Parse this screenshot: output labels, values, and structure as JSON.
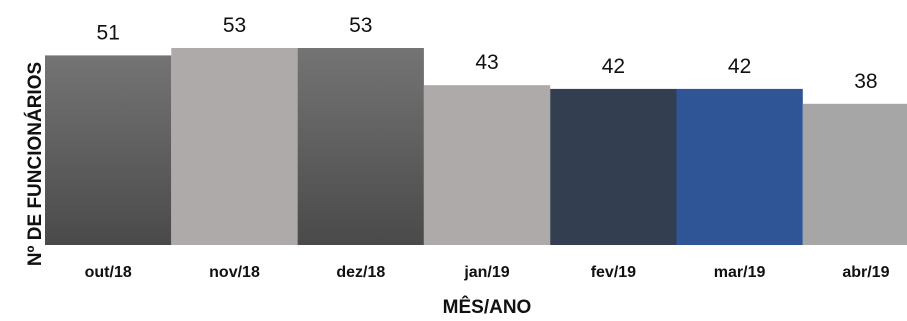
{
  "chart_data": {
    "type": "bar",
    "title": "",
    "xlabel": "MÊS/ANO",
    "ylabel": "Nº DE FUNCIONÁRIOS",
    "categories": [
      "out/18",
      "nov/18",
      "dez/18",
      "jan/19",
      "fev/19",
      "mar/19",
      "abr/19"
    ],
    "values": [
      51,
      53,
      53,
      43,
      42,
      42,
      38
    ],
    "data_labels": [
      "51",
      "53",
      "53",
      "43",
      "42",
      "42",
      "38"
    ],
    "bar_colors": [
      "#5a5a5a",
      "#aeaaaa",
      "#5a5a5a",
      "#aeaaaa",
      "#333f50",
      "#2f5597",
      "#a6a6a6"
    ],
    "ylim": [
      0,
      53
    ],
    "grid": false,
    "legend": "none"
  }
}
